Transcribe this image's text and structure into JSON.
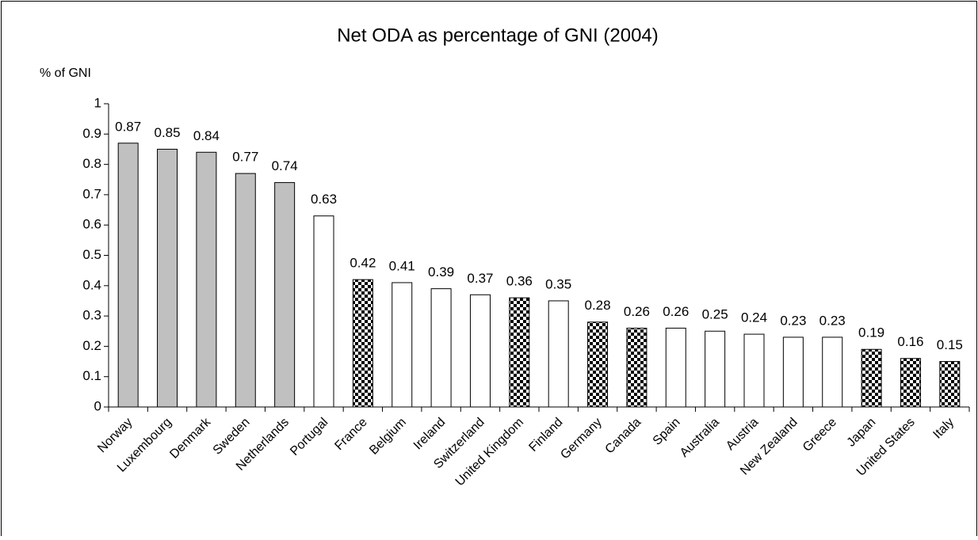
{
  "chart_data": {
    "type": "bar",
    "title": "Net ODA as percentage of GNI (2004)",
    "y_label": "% of GNI",
    "categories": [
      "Norway",
      "Luxembourg",
      "Denmark",
      "Sweden",
      "Netherlands",
      "Portugal",
      "France",
      "Belgium",
      "Ireland",
      "Switzerland",
      "United Kingdom",
      "Finland",
      "Germany",
      "Canada",
      "Spain",
      "Australia",
      "Austria",
      "New Zealand",
      "Greece",
      "Japan",
      "United States",
      "Italy"
    ],
    "values": [
      0.87,
      0.85,
      0.84,
      0.77,
      0.74,
      0.63,
      0.42,
      0.41,
      0.39,
      0.37,
      0.36,
      0.35,
      0.28,
      0.26,
      0.26,
      0.25,
      0.24,
      0.23,
      0.23,
      0.19,
      0.16,
      0.15
    ],
    "colors": [
      "#c0c0c0",
      "#c0c0c0",
      "#c0c0c0",
      "#c0c0c0",
      "#c0c0c0",
      "#ffffff",
      "checkered",
      "#ffffff",
      "#ffffff",
      "#ffffff",
      "checkered",
      "#ffffff",
      "checkered",
      "checkered",
      "#ffffff",
      "#ffffff",
      "#ffffff",
      "#ffffff",
      "#ffffff",
      "checkered",
      "checkered",
      "checkered"
    ],
    "ylim": [
      0,
      1
    ],
    "yticks": [
      0,
      0.1,
      0.2,
      0.3,
      0.4,
      0.5,
      0.6,
      0.7,
      0.8,
      0.9,
      1
    ],
    "grid": false
  }
}
